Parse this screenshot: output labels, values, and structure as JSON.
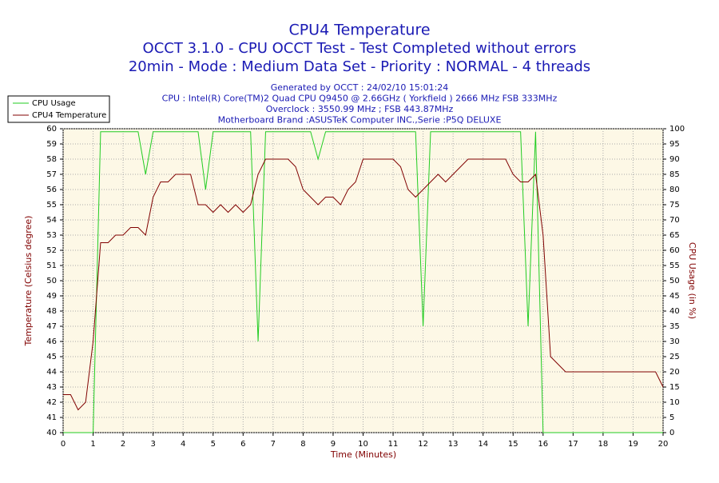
{
  "chart_data": {
    "type": "line",
    "title": "CPU4 Temperature",
    "subtitle_lines": [
      "OCCT 3.1.0 - CPU OCCT Test - Test Completed without errors",
      "20min - Mode : Medium Data Set - Priority : NORMAL - 4 threads"
    ],
    "info_lines": [
      "Generated by OCCT : 24/02/10 15:01:24",
      "CPU : Intel(R) Core(TM)2 Quad CPU Q9450 @ 2.66GHz ( Yorkfield ) 2666 MHz FSB 333MHz",
      "Overclock : 3550.99 MHz ; FSB 443.87MHz",
      "Motherboard Brand :ASUSTeK Computer INC.,Serie :P5Q DELUXE"
    ],
    "x_label": "Time (Minutes)",
    "y_label": "Temperature (Celsius degree)",
    "y2_label": "CPU Usage (in %)",
    "x": [
      0,
      0.25,
      0.5,
      0.75,
      1,
      1.25,
      1.5,
      1.75,
      2,
      2.25,
      2.5,
      2.75,
      3,
      3.25,
      3.5,
      3.75,
      4,
      4.25,
      4.5,
      4.75,
      5,
      5.25,
      5.5,
      5.75,
      6,
      6.25,
      6.5,
      6.75,
      7,
      7.25,
      7.5,
      7.75,
      8,
      8.25,
      8.5,
      8.75,
      9,
      9.25,
      9.5,
      9.75,
      10,
      10.25,
      10.5,
      10.75,
      11,
      11.25,
      11.5,
      11.75,
      12,
      12.25,
      12.5,
      12.75,
      13,
      13.25,
      13.5,
      13.75,
      14,
      14.25,
      14.5,
      14.75,
      15,
      15.25,
      15.5,
      15.75,
      16,
      16.25,
      16.5,
      16.75,
      17,
      17.25,
      17.5,
      17.75,
      18,
      18.25,
      18.5,
      18.75,
      19,
      19.25,
      19.5,
      19.75,
      20
    ],
    "series": [
      {
        "name": "CPU Usage",
        "color": "#22cc22",
        "axis": "y2",
        "values": [
          0,
          0,
          0,
          0,
          0,
          99,
          99,
          99,
          99,
          99,
          99,
          85,
          99,
          99,
          99,
          99,
          99,
          99,
          99,
          80,
          99,
          99,
          99,
          99,
          99,
          99,
          30,
          99,
          99,
          99,
          99,
          99,
          99,
          99,
          90,
          99,
          99,
          99,
          99,
          99,
          99,
          99,
          99,
          99,
          99,
          99,
          99,
          99,
          35,
          99,
          99,
          99,
          99,
          99,
          99,
          99,
          99,
          99,
          99,
          99,
          99,
          99,
          35,
          99,
          0,
          0,
          0,
          0,
          0,
          0,
          0,
          0,
          0,
          0,
          0,
          0,
          0,
          0,
          0,
          0,
          0
        ]
      },
      {
        "name": "CPU4 Temperature",
        "color": "#800000",
        "values": [
          42.5,
          42.5,
          41.5,
          42,
          46,
          52.5,
          52.5,
          53,
          53,
          53.5,
          53.5,
          53,
          55.5,
          56.5,
          56.5,
          57,
          57,
          57,
          55,
          55,
          54.5,
          55,
          54.5,
          55,
          54.5,
          55,
          57,
          58,
          58,
          58,
          58,
          57.5,
          56,
          55.5,
          55,
          55.5,
          55.5,
          55,
          56,
          56.5,
          58,
          58,
          58,
          58,
          58,
          57.5,
          56,
          55.5,
          56,
          56.5,
          57,
          56.5,
          57,
          57.5,
          58,
          58,
          58,
          58,
          58,
          58,
          57,
          56.5,
          56.5,
          57,
          53,
          45,
          44.5,
          44,
          44,
          44,
          44,
          44,
          44,
          44,
          44,
          44,
          44,
          44,
          44,
          44,
          43
        ]
      }
    ],
    "xlim": [
      0,
      20
    ],
    "xticks": [
      0,
      1,
      2,
      3,
      4,
      5,
      6,
      7,
      8,
      9,
      10,
      11,
      12,
      13,
      14,
      15,
      16,
      17,
      18,
      19,
      20
    ],
    "ylim": [
      40,
      60
    ],
    "yticks": [
      40,
      41,
      42,
      43,
      44,
      45,
      46,
      47,
      48,
      49,
      50,
      51,
      52,
      53,
      54,
      55,
      56,
      57,
      58,
      59,
      60
    ],
    "y2lim": [
      0,
      100
    ],
    "y2ticks": [
      0,
      5,
      10,
      15,
      20,
      25,
      30,
      35,
      40,
      45,
      50,
      55,
      60,
      65,
      70,
      75,
      80,
      85,
      90,
      95,
      100
    ],
    "grid": true,
    "legend": "top-left"
  }
}
